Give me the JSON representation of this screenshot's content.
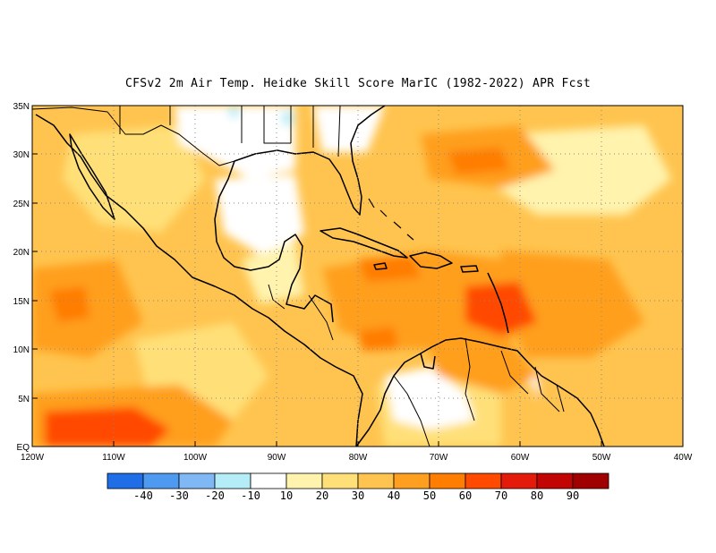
{
  "title": "CFSv2  2m Air Temp. Heidke Skill Score MarIC (1982-2022) APR Fcst",
  "map": {
    "lat_labels": [
      "35N",
      "30N",
      "25N",
      "20N",
      "15N",
      "10N",
      "5N",
      "EQ"
    ],
    "lon_labels": [
      "120W",
      "110W",
      "100W",
      "90W",
      "80W",
      "70W",
      "60W",
      "50W",
      "40W"
    ],
    "grid": "dotted"
  },
  "colorbar": {
    "labels": [
      "-40",
      "-30",
      "-20",
      "-10",
      "10",
      "20",
      "30",
      "40",
      "50",
      "60",
      "70",
      "80",
      "90"
    ],
    "colors": [
      "#1f6ee8",
      "#4e9af0",
      "#7fb8f5",
      "#b4ecf8",
      "#ffffff",
      "#fff3ad",
      "#ffe078",
      "#ffc44f",
      "#ff9f1f",
      "#ff7d00",
      "#ff4a00",
      "#e41a0a",
      "#c30404",
      "#a00000"
    ]
  }
}
